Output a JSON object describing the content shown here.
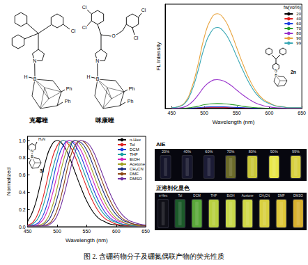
{
  "chart_data": [
    {
      "type": "line",
      "x_label": "Wavelength (nm)",
      "y_label": "FL Intensity",
      "legend_title": "fw(vol%)",
      "legend": "upper right",
      "tick_labels": "x",
      "inset_atoms": [
        "N",
        "B",
        "2n"
      ],
      "x": [
        450,
        460,
        470,
        480,
        490,
        500,
        510,
        520,
        530,
        540,
        550,
        560,
        570,
        580,
        590,
        600,
        610,
        620,
        630,
        640,
        650
      ],
      "xlim": [
        440,
        650
      ],
      "xticks": [
        450,
        500,
        550,
        600,
        650
      ],
      "ylim": [
        0,
        380
      ],
      "series": [
        {
          "name": "20",
          "color": "#000000",
          "values": [
            0,
            0,
            0,
            1,
            1,
            2,
            3,
            3,
            3,
            2,
            2,
            1,
            1,
            1,
            0,
            0,
            0,
            0,
            0,
            0,
            0
          ]
        },
        {
          "name": "40",
          "color": "#e02020",
          "values": [
            0,
            0,
            0,
            1,
            2,
            3,
            4,
            4,
            4,
            3,
            3,
            2,
            1,
            1,
            0,
            0,
            0,
            0,
            0,
            0,
            0
          ]
        },
        {
          "name": "60",
          "color": "#2040e0",
          "values": [
            0,
            0,
            0,
            1,
            3,
            5,
            6,
            6,
            6,
            5,
            4,
            3,
            2,
            1,
            1,
            0,
            0,
            0,
            0,
            0,
            0
          ]
        },
        {
          "name": "70",
          "color": "#2a9d2a",
          "values": [
            0,
            0,
            1,
            4,
            8,
            14,
            17,
            18,
            17,
            15,
            12,
            8,
            5,
            3,
            2,
            1,
            1,
            0,
            0,
            0,
            0
          ]
        },
        {
          "name": "80",
          "color": "#9933cc",
          "values": [
            1,
            2,
            6,
            21,
            47,
            79,
            99,
            105,
            100,
            86,
            67,
            48,
            32,
            19,
            11,
            6,
            3,
            2,
            1,
            1,
            1
          ]
        },
        {
          "name": "90",
          "color": "#e8a33d",
          "values": [
            3,
            7,
            21,
            69,
            155,
            259,
            324,
            345,
            328,
            283,
            221,
            159,
            104,
            62,
            35,
            21,
            10,
            7,
            3,
            3,
            3
          ]
        },
        {
          "name": "99",
          "color": "#3aa8b5",
          "values": [
            3,
            6,
            18,
            59,
            133,
            221,
            277,
            295,
            280,
            242,
            189,
            136,
            89,
            53,
            30,
            18,
            9,
            6,
            3,
            3,
            3
          ]
        }
      ]
    },
    {
      "type": "line",
      "x_label": "Wavelength (nm)",
      "y_label": "Normalized",
      "legend": "upper right",
      "inset_atoms": [
        "H₂N",
        "N",
        "B",
        "3i"
      ],
      "x": [
        450,
        460,
        470,
        480,
        490,
        500,
        510,
        520,
        530,
        540,
        550,
        560,
        570,
        580,
        590,
        600,
        610,
        620,
        630,
        640,
        650
      ],
      "xlim": [
        450,
        650
      ],
      "xticks": [
        450,
        500,
        550,
        600,
        650
      ],
      "ylim": [
        0,
        1.05
      ],
      "yticks": [
        {
          "value": 0,
          "label": "0.0"
        },
        {
          "value": 0.2,
          "label": "0.2"
        },
        {
          "value": 0.4,
          "label": "0.4"
        },
        {
          "value": 0.6,
          "label": "0.6"
        },
        {
          "value": 0.8,
          "label": "0.8"
        },
        {
          "value": 1,
          "label": "1.0"
        }
      ],
      "series": [
        {
          "name": "n-Hex",
          "color": "#000000",
          "values": [
            0.06,
            0.2,
            0.45,
            0.75,
            0.94,
            1.0,
            0.95,
            0.82,
            0.64,
            0.46,
            0.3,
            0.18,
            0.1,
            0.06,
            0.03,
            0.02,
            0.01,
            0.01,
            0.01,
            0.01,
            0.01
          ]
        },
        {
          "name": "Tol",
          "color": "#e02020",
          "values": [
            0.02,
            0.06,
            0.2,
            0.45,
            0.75,
            0.94,
            1.0,
            0.95,
            0.82,
            0.64,
            0.46,
            0.3,
            0.18,
            0.1,
            0.06,
            0.03,
            0.02,
            0.01,
            0.01,
            0.01,
            0.01
          ]
        },
        {
          "name": "DCM",
          "color": "#2040e0",
          "values": [
            0.01,
            0.02,
            0.06,
            0.2,
            0.45,
            0.75,
            0.94,
            1.0,
            0.95,
            0.82,
            0.64,
            0.46,
            0.3,
            0.18,
            0.1,
            0.06,
            0.03,
            0.02,
            0.01,
            0.01,
            0.01
          ]
        },
        {
          "name": "THF",
          "color": "#17a0a0",
          "values": [
            0.01,
            0.04,
            0.13,
            0.33,
            0.6,
            0.85,
            1.0,
            0.98,
            0.89,
            0.73,
            0.55,
            0.38,
            0.24,
            0.14,
            0.08,
            0.05,
            0.03,
            0.02,
            0.01,
            0.01,
            0.01
          ]
        },
        {
          "name": "EtOH",
          "color": "#d020c0",
          "values": [
            0.01,
            0.01,
            0.04,
            0.13,
            0.33,
            0.6,
            0.85,
            1.0,
            0.98,
            0.89,
            0.73,
            0.55,
            0.38,
            0.24,
            0.14,
            0.08,
            0.05,
            0.03,
            0.02,
            0.01,
            0.01
          ]
        },
        {
          "name": "Acetone",
          "color": "#a0a020",
          "values": [
            0.01,
            0.01,
            0.02,
            0.06,
            0.2,
            0.45,
            0.75,
            0.94,
            1.0,
            0.95,
            0.82,
            0.64,
            0.46,
            0.3,
            0.18,
            0.1,
            0.06,
            0.03,
            0.02,
            0.01,
            0.01
          ]
        },
        {
          "name": "CH₃CN",
          "color": "#1a2a80",
          "values": [
            0.01,
            0.01,
            0.01,
            0.04,
            0.13,
            0.33,
            0.6,
            0.85,
            1.0,
            0.98,
            0.89,
            0.73,
            0.55,
            0.38,
            0.24,
            0.14,
            0.08,
            0.05,
            0.03,
            0.02,
            0.01
          ]
        },
        {
          "name": "DMF",
          "color": "#8b4513",
          "values": [
            0.01,
            0.01,
            0.01,
            0.02,
            0.06,
            0.2,
            0.45,
            0.75,
            0.94,
            1.0,
            0.95,
            0.82,
            0.64,
            0.46,
            0.3,
            0.18,
            0.1,
            0.06,
            0.03,
            0.02,
            0.01
          ]
        },
        {
          "name": "DMSO",
          "color": "#7030a0",
          "values": [
            0.01,
            0.01,
            0.01,
            0.01,
            0.04,
            0.13,
            0.33,
            0.6,
            0.85,
            1.0,
            0.98,
            0.89,
            0.73,
            0.55,
            0.38,
            0.24,
            0.14,
            0.08,
            0.05,
            0.03,
            0.02
          ]
        }
      ]
    }
  ],
  "structures": [
    {
      "name": "克霉唑",
      "atoms": [
        "Cl",
        "N",
        "H",
        "B",
        "Ph",
        "Ph"
      ]
    },
    {
      "name": "咪康唑",
      "atoms": [
        "Cl",
        "Cl",
        "Cl",
        "Cl",
        "O",
        "N",
        "H",
        "B",
        "Ph",
        "Ph"
      ]
    }
  ],
  "photos": [
    {
      "title": "AIE",
      "labels": [
        "20%",
        "40%",
        "60%",
        "70%",
        "80%",
        "90%",
        "99%"
      ],
      "colors": [
        "#15152a",
        "#18182e",
        "#1c1c36",
        "#6b6a2a",
        "#c9c63a",
        "#e8e64a",
        "#d8d040"
      ]
    },
    {
      "title": "正溶剂化显色",
      "labels": [
        "n-Hex",
        "Tol",
        "DCM",
        "THF",
        "EtOH",
        "Acetone",
        "CH₃CN",
        "DMF",
        "DMSO"
      ],
      "colors": [
        "#101018",
        "#1c5a2a",
        "#5aa83a",
        "#b8d040",
        "#c8d84a",
        "#d0d848",
        "#d8d040",
        "#e0c83a",
        "#d8b030"
      ]
    }
  ],
  "caption": "图 2. 含硼药物分子及硼氮偶联产物的荧光性质"
}
